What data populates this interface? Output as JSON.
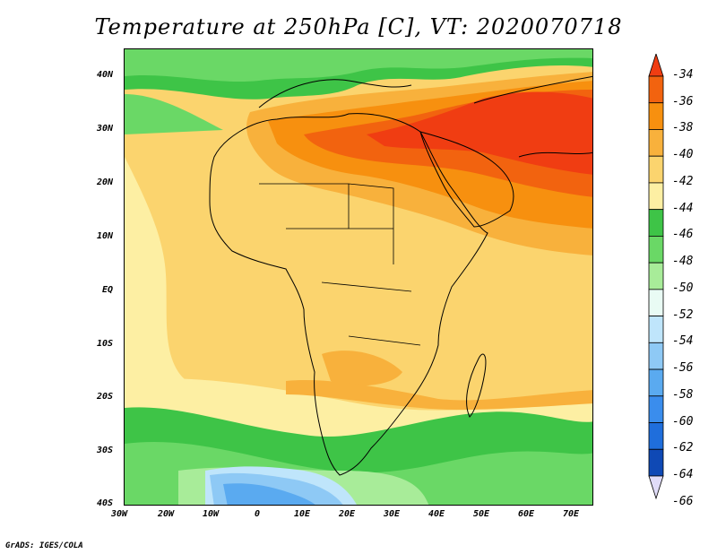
{
  "title": "Temperature at 250hPa [C], VT: 2020070718",
  "credit": "GrADS: IGES/COLA",
  "map": {
    "lon_range": [
      -30,
      75
    ],
    "lat_range": [
      -40,
      45
    ],
    "y_ticks": [
      "40N",
      "30N",
      "20N",
      "10N",
      "EQ",
      "10S",
      "20S",
      "30S",
      "40S"
    ],
    "x_ticks": [
      "30W",
      "20W",
      "10W",
      "0",
      "10E",
      "20E",
      "30E",
      "40E",
      "50E",
      "60E",
      "70E"
    ]
  },
  "colorbar": {
    "labels": [
      "-34",
      "-36",
      "-38",
      "-40",
      "-42",
      "-44",
      "-46",
      "-48",
      "-50",
      "-52",
      "-54",
      "-56",
      "-58",
      "-60",
      "-62",
      "-64",
      "-66"
    ],
    "colors": [
      "#f03d12",
      "#f2630f",
      "#f7900f",
      "#f8b13c",
      "#fbd46e",
      "#fdefa3",
      "#3ec447",
      "#6ad866",
      "#a8ec99",
      "#e9fbf4",
      "#bfe5fb",
      "#8ec9f5",
      "#5aaaf0",
      "#3a8ded",
      "#1f6edc",
      "#0f49b5",
      "#0d1a6e"
    ]
  }
}
